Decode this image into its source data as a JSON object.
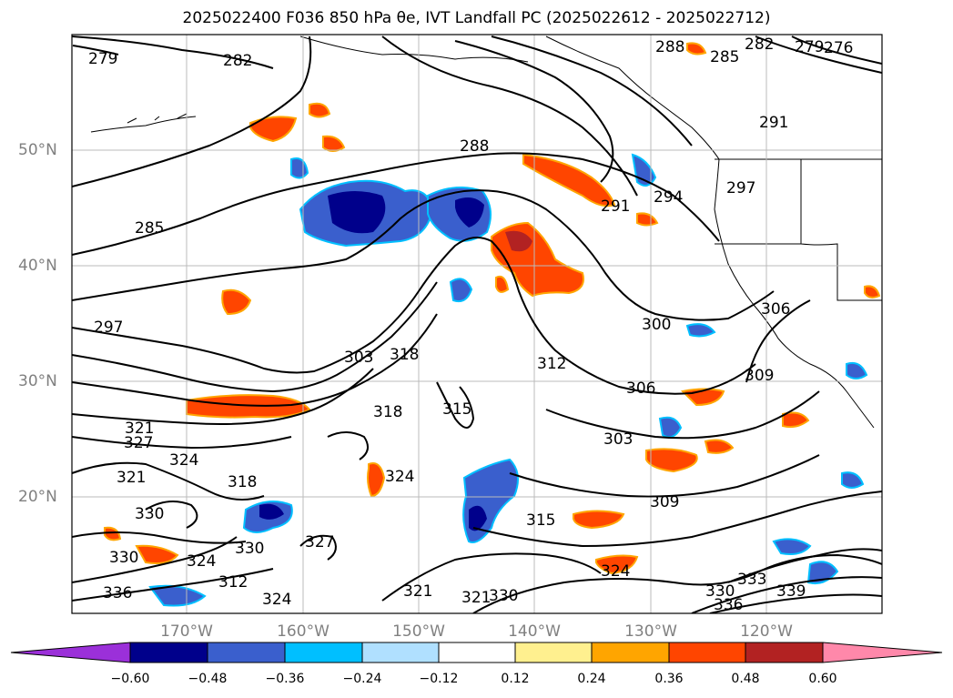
{
  "title": "2025022400 F036 850 hPa θe, IVT Landfall PC (2025022612 - 2025022712)",
  "lat_labels": [
    "50°N",
    "40°N",
    "30°N",
    "20°N"
  ],
  "lon_labels": [
    "170°W",
    "160°W",
    "150°W",
    "140°W",
    "130°W",
    "120°W"
  ],
  "colorbar": {
    "ticks": [
      "−0.60",
      "−0.48",
      "−0.36",
      "−0.24",
      "−0.12",
      "0.12",
      "0.24",
      "0.36",
      "0.48",
      "0.60"
    ],
    "colors": [
      "#9b30d9",
      "#00008b",
      "#3a5fcd",
      "#00bfff",
      "#b0e0ff",
      "#ffffff",
      "#fff08f",
      "#ffa500",
      "#ff4500",
      "#b22222",
      "#ff88aa"
    ]
  },
  "contour_labels": [
    {
      "text": "279"
    },
    {
      "text": "282"
    },
    {
      "text": "288"
    },
    {
      "text": "285"
    },
    {
      "text": "282"
    },
    {
      "text": "279"
    },
    {
      "text": "276"
    },
    {
      "text": "291"
    },
    {
      "text": "288"
    },
    {
      "text": "285"
    },
    {
      "text": "291"
    },
    {
      "text": "294"
    },
    {
      "text": "297"
    },
    {
      "text": "297"
    },
    {
      "text": "300"
    },
    {
      "text": "303"
    },
    {
      "text": "318"
    },
    {
      "text": "312"
    },
    {
      "text": "306"
    },
    {
      "text": "306"
    },
    {
      "text": "309"
    },
    {
      "text": "318"
    },
    {
      "text": "315"
    },
    {
      "text": "321"
    },
    {
      "text": "327"
    },
    {
      "text": "324"
    },
    {
      "text": "321"
    },
    {
      "text": "303"
    },
    {
      "text": "324"
    },
    {
      "text": "309"
    },
    {
      "text": "330"
    },
    {
      "text": "315"
    },
    {
      "text": "318"
    },
    {
      "text": "324"
    },
    {
      "text": "312"
    },
    {
      "text": "327"
    },
    {
      "text": "330"
    },
    {
      "text": "324"
    },
    {
      "text": "321"
    },
    {
      "text": "321"
    },
    {
      "text": "330"
    },
    {
      "text": "324"
    },
    {
      "text": "330"
    },
    {
      "text": "333"
    },
    {
      "text": "336"
    },
    {
      "text": "339"
    },
    {
      "text": "336"
    },
    {
      "text": "330"
    }
  ]
}
